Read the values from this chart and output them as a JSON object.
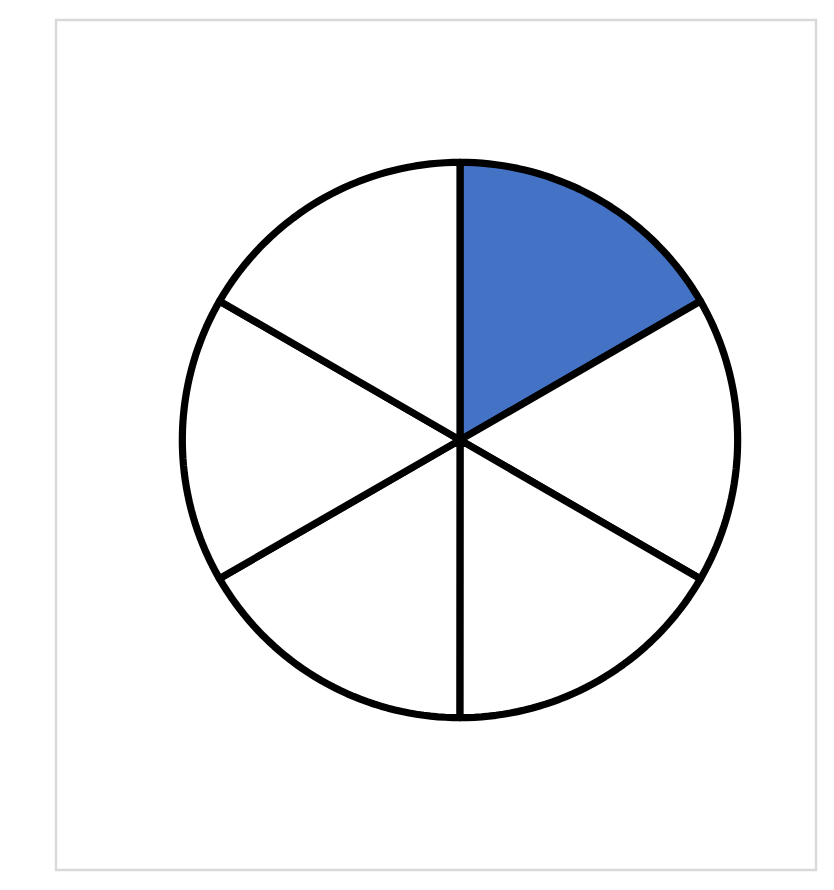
{
  "chart_data": {
    "type": "pie",
    "categories": [
      null,
      null,
      null,
      null,
      null,
      null
    ],
    "values": [
      16.67,
      16.67,
      16.67,
      16.67,
      16.66,
      16.66
    ],
    "colors": [
      "#4472c4",
      "#ffffff",
      "#ffffff",
      "#ffffff",
      "#ffffff",
      "#ffffff"
    ]
  }
}
